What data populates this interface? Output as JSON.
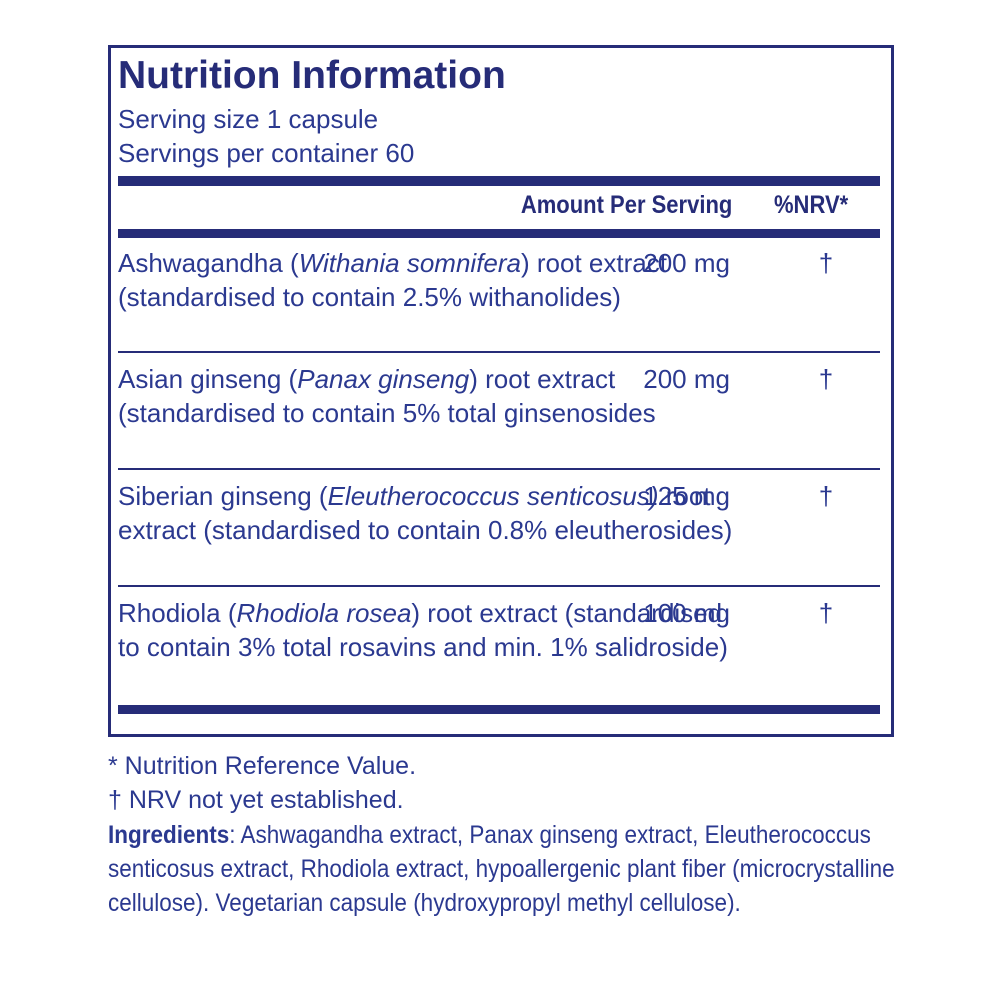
{
  "header": {
    "title": "Nutrition Information",
    "serving_size": "Serving size  1 capsule",
    "servings_per_container": "Servings per container  60"
  },
  "table": {
    "columns": [
      "Amount Per Serving",
      "%NRV*"
    ],
    "rows": [
      {
        "name": [
          "Ashwagandha (",
          "Withania somnifera",
          ") root extract (standardised to contain 2.5% withanolides)"
        ],
        "amount": "200 mg",
        "nrv": "†"
      },
      {
        "name": [
          "Asian ginseng (",
          "Panax ginseng",
          ") root extract (standardised to contain 5% total ginsenosides"
        ],
        "amount": "200 mg",
        "nrv": "†"
      },
      {
        "name": [
          "Siberian ginseng (",
          "Eleutherococcus senticosus)",
          " root extract (standardised to contain 0.8% eleutherosides)"
        ],
        "amount": "125 mg",
        "nrv": "†"
      },
      {
        "name": [
          "Rhodiola (",
          "Rhodiola rosea",
          ") root extract (standardised to contain 3% total rosavins and min. 1% salidroside)"
        ],
        "amount": "100 mg",
        "nrv": "†"
      }
    ]
  },
  "footer": {
    "notes": [
      "* Nutrition Reference Value.",
      "† NRV not yet established."
    ],
    "ingredients_label": "Ingredients",
    "ingredients_text": ": Ashwagandha extract, Panax ginseng extract, Eleutherococcus senticosus extract, Rhodiola extract, hypoallergenic plant fiber (microcrystalline cellulose). Vegetarian capsule (hydroxypropyl methyl cellulose)."
  }
}
